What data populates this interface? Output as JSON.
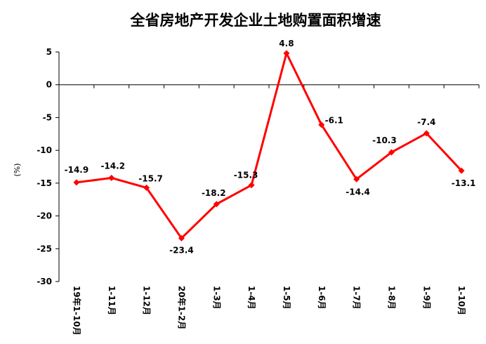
{
  "chart_data": {
    "type": "line",
    "title": "全省房地产开发企业土地购置面积增速",
    "ylabel": "(%)",
    "xlabel": "",
    "ylim": [
      -30,
      5
    ],
    "yticks": [
      5,
      0,
      -5,
      -10,
      -15,
      -20,
      -25,
      -30
    ],
    "grid": false,
    "legend": "none",
    "series_color": "#ff0000",
    "categories": [
      "19年1-10月",
      "1-11月",
      "1-12月",
      "20年1-2月",
      "1-3月",
      "1-4月",
      "1-5月",
      "1-6月",
      "1-7月",
      "1-8月",
      "1-9月",
      "1-10月"
    ],
    "values": [
      -14.9,
      -14.2,
      -15.7,
      -23.4,
      -18.2,
      -15.3,
      4.8,
      -6.1,
      -14.4,
      -10.3,
      -7.4,
      -13.1
    ],
    "value_labels": [
      "-14.9",
      "-14.2",
      "-15.7",
      "-23.4",
      "-18.2",
      "-15.3",
      "4.8",
      "-6.1",
      "-14.4",
      "-10.3",
      "-7.4",
      "-13.1"
    ],
    "ytick_labels": [
      "5",
      "0",
      "-5",
      "-10",
      "-15",
      "-20",
      "-25",
      "-30"
    ]
  }
}
